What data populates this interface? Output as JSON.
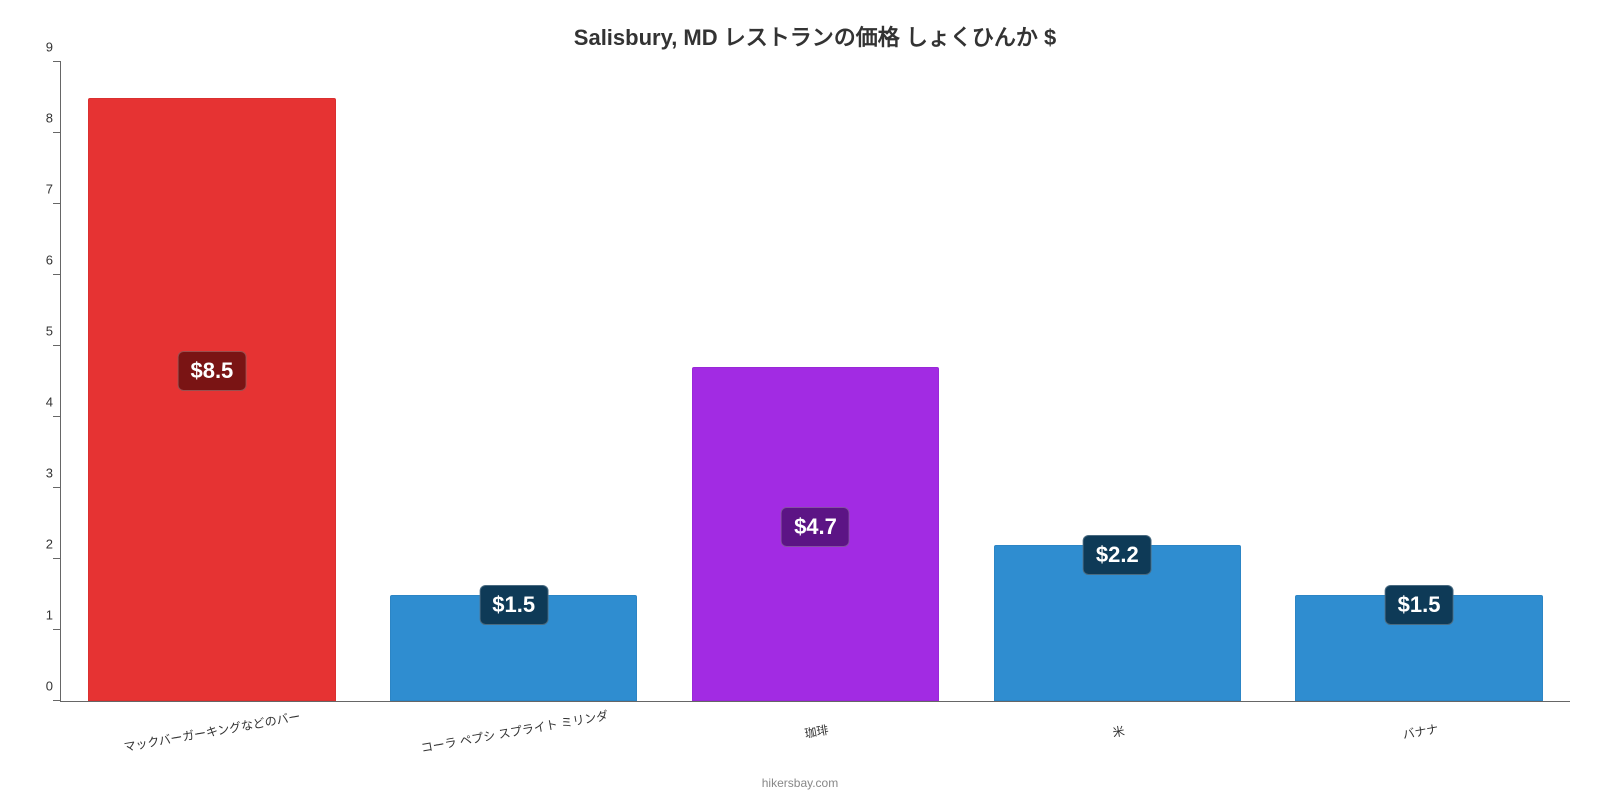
{
  "chart": {
    "type": "bar",
    "title": "Salisbury, MD レストランの価格 しょくひんか $",
    "title_fontsize": 22,
    "title_color": "#333333",
    "background_color": "#ffffff",
    "axis_color": "#666666",
    "text_color": "#333333",
    "ylim": [
      0,
      9
    ],
    "ytick_step": 1,
    "yticks": [
      0,
      1,
      2,
      3,
      4,
      5,
      6,
      7,
      8,
      9
    ],
    "bar_width": 0.82,
    "categories": [
      "マックバーガーキングなどのバー",
      "コーラ ペプシ スプライト ミリンダ",
      "珈琲",
      "米",
      "バナナ"
    ],
    "values": [
      8.5,
      1.5,
      4.7,
      2.2,
      1.5
    ],
    "value_labels": [
      "$8.5",
      "$1.5",
      "$4.7",
      "$2.2",
      "$1.5"
    ],
    "bar_colors": [
      "#e63333",
      "#2f8dd0",
      "#a22be3",
      "#2f8dd0",
      "#2f8dd0"
    ],
    "badge_colors": [
      "#7a1414",
      "#0e3a57",
      "#5c1485",
      "#0e3a57",
      "#0e3a57"
    ],
    "x_label_fontsize": 12,
    "y_label_fontsize": 13,
    "badge_fontsize": 22,
    "attribution": "hikersbay.com",
    "attribution_color": "#888888"
  }
}
